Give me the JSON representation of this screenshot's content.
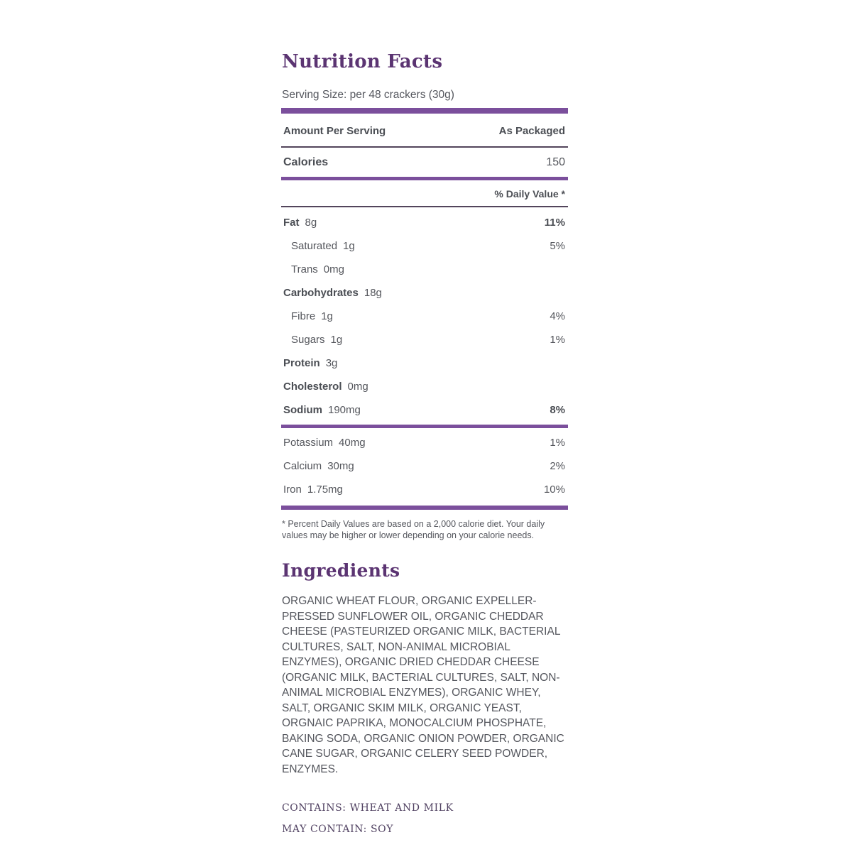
{
  "title": "Nutrition Facts",
  "serving_size": "Serving Size: per 48 crackers (30g)",
  "table": {
    "header": {
      "left": "Amount Per Serving",
      "right": "As Packaged"
    },
    "calories": {
      "label": "Calories",
      "value": "150"
    },
    "daily_value_header": "% Daily Value *",
    "main_rows": [
      {
        "label": "Fat",
        "amount": "8g",
        "dv": "11%"
      },
      {
        "label": "Saturated",
        "amount": "1g",
        "dv": "5%"
      },
      {
        "label": "Trans",
        "amount": "0mg",
        "dv": ""
      },
      {
        "label": "Carbohydrates",
        "amount": "18g",
        "dv": ""
      },
      {
        "label": "Fibre",
        "amount": "1g",
        "dv": "4%"
      },
      {
        "label": "Sugars",
        "amount": "1g",
        "dv": "1%"
      },
      {
        "label": "Protein",
        "amount": "3g",
        "dv": ""
      },
      {
        "label": "Cholesterol",
        "amount": "0mg",
        "dv": ""
      },
      {
        "label": "Sodium",
        "amount": "190mg",
        "dv": "8%"
      }
    ],
    "mineral_rows": [
      {
        "label": "Potassium",
        "amount": "40mg",
        "dv": "1%"
      },
      {
        "label": "Calcium",
        "amount": "30mg",
        "dv": "2%"
      },
      {
        "label": "Iron",
        "amount": "1.75mg",
        "dv": "10%"
      }
    ]
  },
  "footnote": "* Percent Daily Values are based on a 2,000 calorie diet. Your daily values may be higher or lower depending on your calorie needs.",
  "ingredients": {
    "heading": "Ingredients",
    "text": "ORGANIC WHEAT FLOUR, ORGANIC EXPELLER-PRESSED SUNFLOWER OIL, ORGANIC CHEDDAR CHEESE (PASTEURIZED ORGANIC MILK, BACTERIAL CULTURES, SALT, NON-ANIMAL MICROBIAL ENZYMES), ORGANIC DRIED CHEDDAR CHEESE (ORGANIC MILK, BACTERIAL CULTURES, SALT, NON-ANIMAL MICROBIAL ENZYMES), ORGANIC WHEY, SALT, ORGANIC SKIM MILK, ORGANIC YEAST, ORGNAIC PAPRIKA, MONOCALCIUM PHOSPHATE, BAKING SODA, ORGANIC ONION POWDER, ORGANIC CANE SUGAR, ORGANIC CELERY SEED POWDER, ENZYMES."
  },
  "allergens": {
    "contains": "CONTAINS: WHEAT AND MILK",
    "may_contain": "MAY CONTAIN: SOY"
  },
  "colors": {
    "accent_purple": "#7b4f9c",
    "heading_purple": "#5b3472",
    "rule_dark": "#53455b",
    "body_text": "#55575e"
  }
}
